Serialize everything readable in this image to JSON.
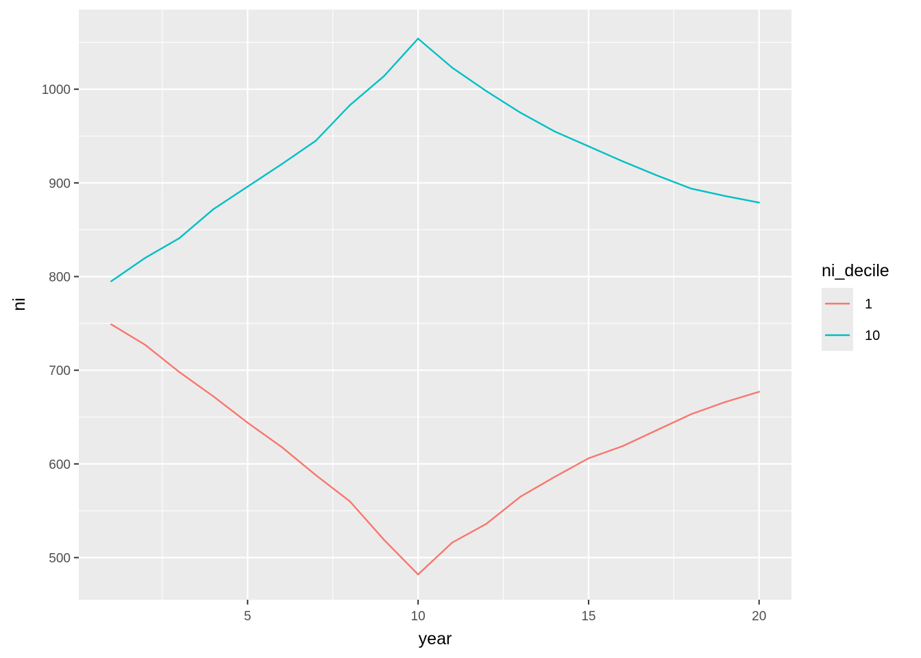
{
  "chart_data": {
    "type": "line",
    "title": "",
    "xlabel": "year",
    "ylabel": "ni",
    "xlim": [
      0.05,
      20.95
    ],
    "ylim": [
      455,
      1085
    ],
    "x_ticks": [
      5,
      10,
      15,
      20
    ],
    "x_minor_ticks": [
      2.5,
      7.5,
      12.5,
      17.5
    ],
    "y_ticks": [
      500,
      600,
      700,
      800,
      900,
      1000
    ],
    "y_minor_ticks": [
      550,
      650,
      750,
      850,
      950,
      1050
    ],
    "grid": true,
    "legend_title": "ni_decile",
    "legend_position": "right",
    "panel_color": "#ebebeb",
    "gridline_color": "#ffffff",
    "x": [
      1,
      2,
      3,
      4,
      5,
      6,
      7,
      8,
      9,
      10,
      11,
      12,
      13,
      14,
      15,
      16,
      17,
      18,
      19,
      20
    ],
    "series": [
      {
        "name": "1",
        "color": "#F8766D",
        "values": [
          749,
          727,
          698,
          672,
          644,
          618,
          588,
          560,
          519,
          482,
          516,
          536,
          565,
          586,
          606,
          619,
          636,
          653,
          666,
          677
        ]
      },
      {
        "name": "10",
        "color": "#00BFC4",
        "values": [
          795,
          820,
          841,
          872,
          896,
          920,
          945,
          983,
          1014,
          1054,
          1023,
          998,
          975,
          955,
          939,
          923,
          908,
          894,
          886,
          879
        ]
      }
    ]
  }
}
